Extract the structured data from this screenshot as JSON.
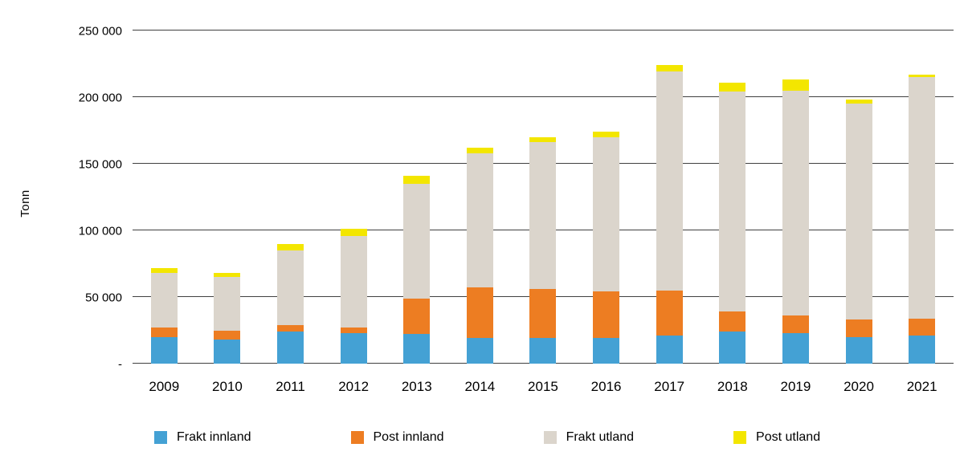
{
  "chart_data": {
    "type": "bar",
    "stacked": true,
    "ylabel": "Tonn",
    "ylim": [
      0,
      250000
    ],
    "grid": true,
    "legend_position": "bottom",
    "yticks": [
      0,
      50000,
      100000,
      150000,
      200000,
      250000
    ],
    "ytick_labels": [
      " - ",
      "50 000",
      "100 000",
      "150 000",
      "200 000",
      "250 000"
    ],
    "categories": [
      "2009",
      "2010",
      "2011",
      "2012",
      "2013",
      "2014",
      "2015",
      "2016",
      "2017",
      "2018",
      "2019",
      "2020",
      "2021"
    ],
    "series": [
      {
        "name": "Frakt innland",
        "color": "#44a1d4",
        "values": [
          20000,
          18000,
          24000,
          23000,
          22000,
          19000,
          19000,
          19000,
          21000,
          24000,
          23000,
          20000,
          21000
        ]
      },
      {
        "name": "Post innland",
        "color": "#ed7d22",
        "values": [
          7000,
          7000,
          5000,
          4000,
          27000,
          38000,
          37000,
          35000,
          34000,
          15000,
          13000,
          13000,
          13000
        ]
      },
      {
        "name": "Frakt utland",
        "color": "#dbd5cc",
        "values": [
          41000,
          40000,
          56000,
          69000,
          86000,
          101000,
          110000,
          116000,
          164000,
          165000,
          169000,
          162000,
          181000
        ]
      },
      {
        "name": "Post utland",
        "color": "#f3e600",
        "values": [
          4000,
          3000,
          5000,
          5000,
          6000,
          4000,
          4000,
          4000,
          5000,
          7000,
          8000,
          3000,
          2000
        ]
      }
    ]
  }
}
